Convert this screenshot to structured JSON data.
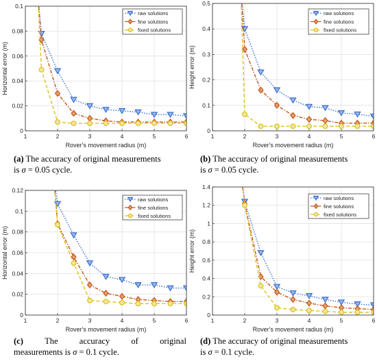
{
  "colors": {
    "raw": "#3a6fd0",
    "fine": "#c0561a",
    "fixed": "#dcc11a"
  },
  "captions": [
    {
      "label": "(a)",
      "pre": "The accuracy of original measurements",
      "is": "is",
      "sigma": "σ",
      "eq": "= 0.05 cycle."
    },
    {
      "label": "(b)",
      "pre": "The accuracy of original measurements",
      "is": "is",
      "sigma": "σ",
      "eq": "= 0.05 cycle."
    },
    {
      "label": "(c)",
      "w1": "The",
      "w2": "accuracy",
      "w3": "of",
      "w4": "original",
      "line2a": "measurements is",
      "sigma": "σ",
      "eq": "= 0.1 cycle."
    },
    {
      "label": "(d)",
      "pre": "The accuracy of original measurements",
      "is": "is",
      "sigma": "σ",
      "eq": "= 0.1 cycle."
    }
  ],
  "chart_data": [
    {
      "type": "line",
      "xlabel": "Rover's movement radius (m)",
      "ylabel": "Horizontal error (m)",
      "xlim": [
        1,
        6
      ],
      "ylim": [
        0,
        0.1
      ],
      "xticks": [
        "1",
        "2",
        "3",
        "4",
        "5",
        "6"
      ],
      "yticks": [
        "0",
        "0.02",
        "0.04",
        "0.06",
        "0.08",
        "0.1"
      ],
      "grid": true,
      "legend": "top-right",
      "series": [
        {
          "name": "raw solutions",
          "x": [
            1.5,
            2,
            2.5,
            3,
            3.5,
            4,
            4.5,
            5,
            5.5,
            6
          ],
          "values": [
            0.078,
            0.048,
            0.025,
            0.02,
            0.017,
            0.016,
            0.015,
            0.013,
            0.013,
            0.012
          ]
        },
        {
          "name": "fine solutions",
          "x": [
            1.5,
            2,
            2.5,
            3,
            3.5,
            4,
            4.5,
            5,
            5.5,
            6
          ],
          "values": [
            0.073,
            0.03,
            0.014,
            0.01,
            0.008,
            0.007,
            0.007,
            0.007,
            0.007,
            0.007
          ]
        },
        {
          "name": "fixed solutions",
          "x": [
            1.5,
            2,
            2.5,
            3,
            3.5,
            4,
            4.5,
            5,
            5.5,
            6
          ],
          "values": [
            0.049,
            0.007,
            0.006,
            0.006,
            0.006,
            0.006,
            0.006,
            0.006,
            0.006,
            0.006
          ]
        }
      ]
    },
    {
      "type": "line",
      "xlabel": "Rover's movement radius (m)",
      "ylabel": "Height error (m)",
      "xlim": [
        1,
        6
      ],
      "ylim": [
        0,
        0.5
      ],
      "xticks": [
        "1",
        "2",
        "3",
        "4",
        "5",
        "6"
      ],
      "yticks": [
        "0",
        "0.1",
        "0.2",
        "0.3",
        "0.4",
        "0.5"
      ],
      "grid": true,
      "legend": "top-right",
      "series": [
        {
          "name": "raw solutions",
          "x": [
            2,
            2.5,
            3,
            3.5,
            4,
            4.5,
            5,
            5.5,
            6
          ],
          "values": [
            0.4,
            0.23,
            0.16,
            0.12,
            0.095,
            0.09,
            0.07,
            0.065,
            0.057
          ]
        },
        {
          "name": "fine solutions",
          "x": [
            2,
            2.5,
            3,
            3.5,
            4,
            4.5,
            5,
            5.5,
            6
          ],
          "values": [
            0.32,
            0.16,
            0.1,
            0.06,
            0.045,
            0.04,
            0.03,
            0.03,
            0.03
          ]
        },
        {
          "name": "fixed solutions",
          "x": [
            2,
            2.5,
            3,
            3.5,
            4,
            4.5,
            5,
            5.5,
            6
          ],
          "values": [
            0.065,
            0.018,
            0.018,
            0.018,
            0.018,
            0.018,
            0.018,
            0.018,
            0.018
          ]
        }
      ]
    },
    {
      "type": "line",
      "xlabel": "Rover's movement radius (m)",
      "ylabel": "Horizontal error (m)",
      "xlim": [
        1,
        6
      ],
      "ylim": [
        0,
        0.12
      ],
      "xticks": [
        "1",
        "2",
        "3",
        "4",
        "5",
        "6"
      ],
      "yticks": [
        "0",
        "0.02",
        "0.04",
        "0.06",
        "0.08",
        "0.1",
        "0.12"
      ],
      "grid": true,
      "legend": "top-right",
      "series": [
        {
          "name": "raw solutions",
          "x": [
            2,
            2.5,
            3,
            3.5,
            4,
            4.5,
            5,
            5.5,
            6
          ],
          "values": [
            0.107,
            0.077,
            0.05,
            0.037,
            0.034,
            0.029,
            0.029,
            0.026,
            0.026
          ]
        },
        {
          "name": "fine solutions",
          "x": [
            2,
            2.5,
            3,
            3.5,
            4,
            4.5,
            5,
            5.5,
            6
          ],
          "values": [
            0.088,
            0.056,
            0.029,
            0.021,
            0.018,
            0.015,
            0.014,
            0.013,
            0.013
          ]
        },
        {
          "name": "fixed solutions",
          "x": [
            2,
            2.5,
            3,
            3.5,
            4,
            4.5,
            5,
            5.5,
            6
          ],
          "values": [
            0.087,
            0.05,
            0.014,
            0.013,
            0.012,
            0.011,
            0.011,
            0.011,
            0.011
          ]
        }
      ]
    },
    {
      "type": "line",
      "xlabel": "Rover's movement radius (m)",
      "ylabel": "Height error (m)",
      "xlim": [
        1,
        6
      ],
      "ylim": [
        0,
        1.4
      ],
      "xticks": [
        "1",
        "2",
        "3",
        "4",
        "5",
        "6"
      ],
      "yticks": [
        "0",
        "0.2",
        "0.4",
        "0.6",
        "0.8",
        "1",
        "1.2",
        "1.4"
      ],
      "grid": true,
      "legend": "top-right",
      "series": [
        {
          "name": "raw solutions",
          "x": [
            2,
            2.5,
            3,
            3.5,
            4,
            4.5,
            5,
            5.5,
            6
          ],
          "values": [
            1.24,
            0.68,
            0.31,
            0.24,
            0.21,
            0.17,
            0.14,
            0.12,
            0.11
          ]
        },
        {
          "name": "fine solutions",
          "x": [
            2,
            2.5,
            3,
            3.5,
            4,
            4.5,
            5,
            5.5,
            6
          ],
          "values": [
            1.22,
            0.42,
            0.25,
            0.17,
            0.13,
            0.1,
            0.08,
            0.07,
            0.06
          ]
        },
        {
          "name": "fixed solutions",
          "x": [
            2,
            2.5,
            3,
            3.5,
            4,
            4.5,
            5,
            5.5,
            6
          ],
          "values": [
            1.2,
            0.32,
            0.08,
            0.06,
            0.05,
            0.04,
            0.03,
            0.03,
            0.03
          ]
        }
      ]
    }
  ]
}
